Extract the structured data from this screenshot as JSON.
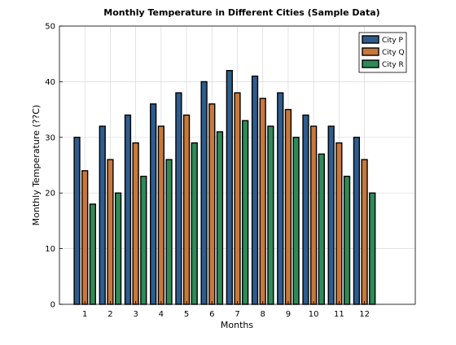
{
  "chart_data": {
    "type": "bar",
    "title": "Monthly Temperature in Different Cities (Sample Data)",
    "xlabel": "Months",
    "ylabel": "Monthly Temperature (??C)",
    "categories": [
      "1",
      "2",
      "3",
      "4",
      "5",
      "6",
      "7",
      "8",
      "9",
      "10",
      "11",
      "12"
    ],
    "series": [
      {
        "name": "City P",
        "color": "#2e5c8e",
        "values": [
          30,
          32,
          34,
          36,
          38,
          40,
          42,
          41,
          38,
          34,
          32,
          30
        ]
      },
      {
        "name": "City Q",
        "color": "#c8783a",
        "values": [
          24,
          26,
          29,
          32,
          34,
          36,
          38,
          37,
          35,
          32,
          29,
          26
        ]
      },
      {
        "name": "City R",
        "color": "#2e8b57",
        "values": [
          18,
          20,
          23,
          26,
          29,
          31,
          33,
          32,
          30,
          27,
          23,
          20
        ]
      }
    ],
    "ylim": [
      0,
      50
    ],
    "xlim": [
      0,
      14
    ],
    "yticks": [
      "0",
      "10",
      "20",
      "30",
      "40",
      "50"
    ],
    "grid": true,
    "legend_position": "top-right"
  }
}
